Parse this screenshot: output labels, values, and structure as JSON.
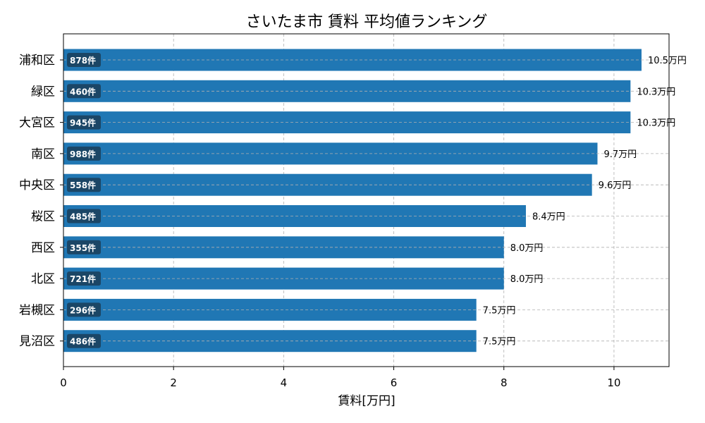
{
  "chart_data": {
    "type": "bar",
    "orientation": "horizontal",
    "title": "さいたま市 賃料 平均値ランキング",
    "xlabel": "賃料[万円]",
    "ylabel": "",
    "xlim": [
      0,
      11
    ],
    "xticks": [
      0,
      2,
      4,
      6,
      8,
      10
    ],
    "xtick_labels": [
      "0",
      "2",
      "4",
      "6",
      "8",
      "10"
    ],
    "grid": true,
    "categories": [
      "浦和区",
      "緑区",
      "大宮区",
      "南区",
      "中央区",
      "桜区",
      "西区",
      "北区",
      "岩槻区",
      "見沼区"
    ],
    "values": [
      10.5,
      10.3,
      10.3,
      9.7,
      9.6,
      8.4,
      8.0,
      8.0,
      7.5,
      7.5
    ],
    "value_labels": [
      "10.5万円",
      "10.3万円",
      "10.3万円",
      "9.7万円",
      "9.6万円",
      "8.4万円",
      "8.0万円",
      "8.0万円",
      "7.5万円",
      "7.5万円"
    ],
    "count_labels": [
      "878件",
      "460件",
      "945件",
      "988件",
      "558件",
      "485件",
      "355件",
      "721件",
      "296件",
      "486件"
    ],
    "colors": {
      "bar": "#2077b4",
      "badge": "#1b4666",
      "grid": "#b0b0b0"
    }
  }
}
